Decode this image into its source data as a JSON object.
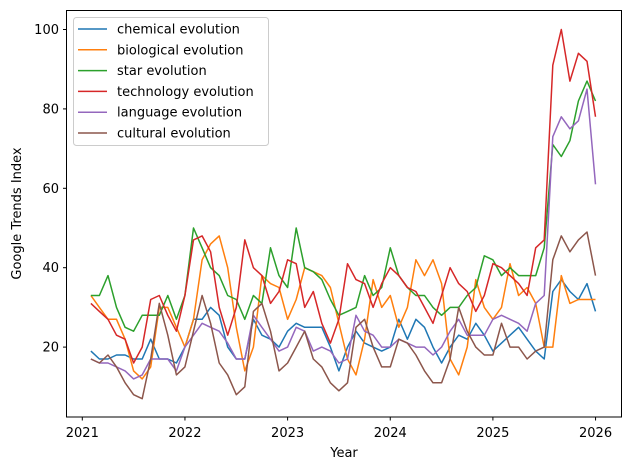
{
  "chart_data": {
    "type": "line",
    "title": "",
    "xlabel": "Year",
    "ylabel": "Google Trends Index",
    "xlim": [
      "2020-11",
      "2026-03"
    ],
    "ylim": [
      2.5,
      104.8
    ],
    "grid": false,
    "legend_position": "top-left",
    "x_ticks": [
      "2021",
      "2022",
      "2023",
      "2024",
      "2025",
      "2026"
    ],
    "y_ticks": [
      20,
      40,
      60,
      80,
      100
    ],
    "x": [
      "2021-02",
      "2021-03",
      "2021-04",
      "2021-05",
      "2021-06",
      "2021-07",
      "2021-08",
      "2021-09",
      "2021-10",
      "2021-11",
      "2021-12",
      "2022-01",
      "2022-02",
      "2022-03",
      "2022-04",
      "2022-05",
      "2022-06",
      "2022-07",
      "2022-08",
      "2022-09",
      "2022-10",
      "2022-11",
      "2022-12",
      "2023-01",
      "2023-02",
      "2023-03",
      "2023-04",
      "2023-05",
      "2023-06",
      "2023-07",
      "2023-08",
      "2023-09",
      "2023-10",
      "2023-11",
      "2023-12",
      "2024-01",
      "2024-02",
      "2024-03",
      "2024-04",
      "2024-05",
      "2024-06",
      "2024-07",
      "2024-08",
      "2024-09",
      "2024-10",
      "2024-11",
      "2024-12",
      "2025-01",
      "2025-02",
      "2025-03",
      "2025-04",
      "2025-05",
      "2025-06",
      "2025-07",
      "2025-08",
      "2025-09",
      "2025-10",
      "2025-11",
      "2025-12",
      "2026-01"
    ],
    "series": [
      {
        "name": "chemical evolution",
        "color": "#1f77b4",
        "values": [
          19,
          17,
          17,
          18,
          18,
          17,
          17,
          22,
          17,
          17,
          16,
          20,
          27,
          27,
          30,
          28,
          20,
          17,
          17,
          27,
          23,
          22,
          20,
          24,
          26,
          25,
          25,
          25,
          20,
          14,
          20,
          24,
          21,
          20,
          19,
          20,
          27,
          22,
          27,
          25,
          20,
          16,
          20,
          23,
          22,
          26,
          23,
          19,
          21,
          23,
          25,
          22,
          19,
          17,
          34,
          37,
          34,
          32,
          36,
          29
        ]
      },
      {
        "name": "biological evolution",
        "color": "#ff7f0e",
        "values": [
          33,
          30,
          27,
          27,
          22,
          14,
          12,
          15,
          30,
          30,
          25,
          20,
          27,
          42,
          46,
          48,
          40,
          25,
          14,
          20,
          38,
          36,
          35,
          27,
          32,
          40,
          39,
          38,
          35,
          26,
          17,
          13,
          22,
          37,
          30,
          33,
          25,
          30,
          42,
          38,
          42,
          36,
          17,
          13,
          20,
          37,
          30,
          27,
          30,
          41,
          33,
          35,
          31,
          20,
          20,
          38,
          31,
          32,
          32,
          32
        ]
      },
      {
        "name": "star evolution",
        "color": "#2ca02c",
        "values": [
          33,
          33,
          38,
          30,
          25,
          24,
          28,
          28,
          28,
          33,
          27,
          33,
          50,
          45,
          40,
          38,
          33,
          32,
          27,
          33,
          31,
          45,
          38,
          35,
          50,
          40,
          39,
          37,
          32,
          28,
          29,
          30,
          38,
          33,
          35,
          45,
          38,
          35,
          33,
          33,
          30,
          28,
          30,
          30,
          33,
          35,
          43,
          42,
          38,
          40,
          38,
          38,
          38,
          45,
          71,
          68,
          72,
          82,
          87,
          82
        ]
      },
      {
        "name": "technology evolution",
        "color": "#d62728",
        "values": [
          31,
          29,
          27,
          23,
          22,
          16,
          20,
          32,
          33,
          28,
          24,
          33,
          47,
          48,
          44,
          30,
          23,
          30,
          47,
          40,
          38,
          31,
          34,
          42,
          41,
          30,
          34,
          26,
          21,
          27,
          41,
          37,
          36,
          30,
          36,
          40,
          38,
          35,
          34,
          30,
          26,
          33,
          40,
          36,
          34,
          29,
          33,
          41,
          40,
          38,
          36,
          33,
          45,
          47,
          91,
          100,
          87,
          94,
          92,
          78
        ]
      },
      {
        "name": "language evolution",
        "color": "#9467bd",
        "values": [
          17,
          16,
          16,
          15,
          14,
          12,
          13,
          17,
          17,
          17,
          14,
          20,
          23,
          26,
          25,
          24,
          21,
          17,
          17,
          28,
          25,
          22,
          19,
          20,
          25,
          24,
          19,
          20,
          19,
          16,
          17,
          28,
          24,
          23,
          20,
          20,
          22,
          21,
          20,
          20,
          18,
          20,
          24,
          27,
          23,
          23,
          23,
          27,
          28,
          27,
          26,
          24,
          31,
          33,
          73,
          78,
          75,
          77,
          85,
          61
        ]
      },
      {
        "name": "cultural evolution",
        "color": "#8c564b",
        "values": [
          17,
          16,
          18,
          15,
          11,
          8,
          7,
          17,
          31,
          23,
          13,
          15,
          24,
          33,
          26,
          16,
          13,
          8,
          10,
          29,
          31,
          24,
          14,
          16,
          20,
          24,
          17,
          15,
          11,
          9,
          11,
          25,
          27,
          20,
          15,
          15,
          22,
          21,
          18,
          14,
          11,
          11,
          17,
          30,
          24,
          20,
          18,
          18,
          26,
          20,
          20,
          17,
          19,
          20,
          42,
          48,
          44,
          47,
          49,
          38
        ]
      }
    ]
  }
}
